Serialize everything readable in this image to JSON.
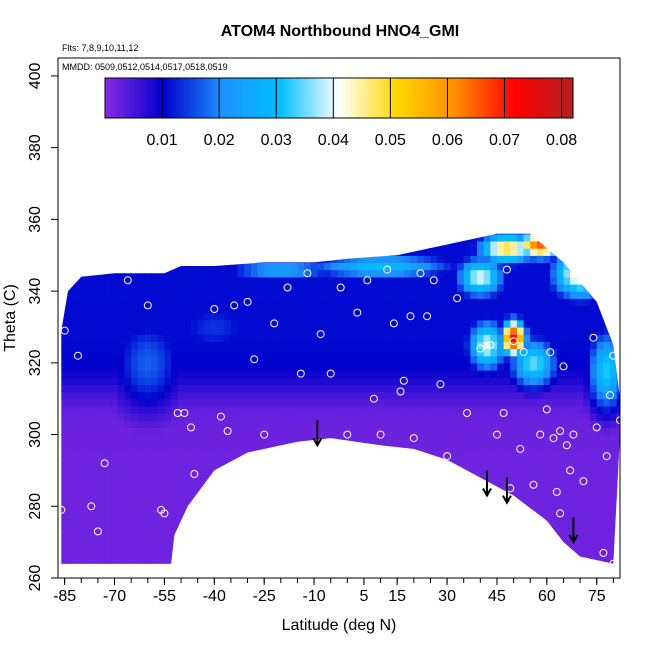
{
  "chart_data": {
    "type": "heatmap",
    "title": "ATOM4 Northbound HNO4_GMI",
    "flights_label": "Flts: 7,8,9,10,11,12",
    "dates_label": "MMDD: 0509,0512,0514,0517,0518,0519",
    "xlabel": "Latitude (deg N)",
    "ylabel": "Theta (C)",
    "xlim": [
      -87,
      82
    ],
    "ylim": [
      260,
      405
    ],
    "x_ticks": [
      "-85",
      "-70",
      "-55",
      "-40",
      "-25",
      "-10",
      "5",
      "15",
      "30",
      "45",
      "60",
      "75"
    ],
    "y_ticks": [
      "260",
      "280",
      "300",
      "320",
      "340",
      "360",
      "380",
      "400"
    ],
    "colorbar": {
      "min": 0.0,
      "max": 0.082,
      "ticks": [
        "0.01",
        "0.02",
        "0.03",
        "0.04",
        "0.05",
        "0.06",
        "0.07",
        "0.08"
      ],
      "colors": [
        "#8a2be2",
        "#0000cd",
        "#1e90ff",
        "#00bfff",
        "#ffffff",
        "#ffd700",
        "#ff8c00",
        "#ff0000",
        "#b22222"
      ]
    },
    "field": {
      "boundary_top": [
        [
          -86,
          329
        ],
        [
          -84,
          340
        ],
        [
          -80,
          344
        ],
        [
          -70,
          345
        ],
        [
          -55,
          345
        ],
        [
          -50,
          347
        ],
        [
          -40,
          347
        ],
        [
          -25,
          348
        ],
        [
          -10,
          348
        ],
        [
          0,
          349
        ],
        [
          15,
          350
        ],
        [
          30,
          353
        ],
        [
          45,
          356
        ],
        [
          55,
          356
        ],
        [
          65,
          348
        ],
        [
          75,
          337
        ],
        [
          80,
          325
        ],
        [
          82,
          310
        ]
      ],
      "boundary_bottom": [
        [
          82,
          300
        ],
        [
          80,
          264
        ],
        [
          70,
          266
        ],
        [
          65,
          270
        ],
        [
          60,
          276
        ],
        [
          50,
          283
        ],
        [
          40,
          288
        ],
        [
          30,
          293
        ],
        [
          20,
          296
        ],
        [
          10,
          297
        ],
        [
          -5,
          299
        ],
        [
          -15,
          298
        ],
        [
          -30,
          295
        ],
        [
          -40,
          290
        ],
        [
          -48,
          280
        ],
        [
          -52,
          272
        ],
        [
          -53,
          264
        ],
        [
          -86,
          264
        ]
      ],
      "blobs": [
        {
          "x": 50,
          "y": 327,
          "value": 0.075,
          "sx": 2.5,
          "sy": 3.5
        },
        {
          "x": 58,
          "y": 353,
          "value": 0.065,
          "sx": 5,
          "sy": 2.5
        },
        {
          "x": 48,
          "y": 352,
          "value": 0.05,
          "sx": 6,
          "sy": 3
        },
        {
          "x": 70,
          "y": 345,
          "value": 0.045,
          "sx": 6,
          "sy": 5
        },
        {
          "x": 40,
          "y": 344,
          "value": 0.04,
          "sx": 5,
          "sy": 4
        },
        {
          "x": 42,
          "y": 325,
          "value": 0.04,
          "sx": 4,
          "sy": 5
        },
        {
          "x": 56,
          "y": 320,
          "value": 0.035,
          "sx": 5,
          "sy": 5
        },
        {
          "x": 78,
          "y": 318,
          "value": 0.032,
          "sx": 4,
          "sy": 8
        },
        {
          "x": 10,
          "y": 347,
          "value": 0.03,
          "sx": 16,
          "sy": 2.5
        },
        {
          "x": -20,
          "y": 346,
          "value": 0.025,
          "sx": 12,
          "sy": 2
        },
        {
          "x": -60,
          "y": 320,
          "value": 0.017,
          "sx": 8,
          "sy": 10
        },
        {
          "x": -40,
          "y": 330,
          "value": 0.014,
          "sx": 10,
          "sy": 6
        }
      ],
      "upper_value": 0.011,
      "lower_value": 0.002,
      "transition_theta": 313
    },
    "observations": [
      [
        -86,
        279
      ],
      [
        -85,
        329
      ],
      [
        -81,
        322
      ],
      [
        -77,
        280
      ],
      [
        -75,
        273
      ],
      [
        -73,
        292
      ],
      [
        -66,
        343
      ],
      [
        -60,
        336
      ],
      [
        -56,
        279
      ],
      [
        -55,
        278
      ],
      [
        -51,
        306
      ],
      [
        -49,
        306
      ],
      [
        -47,
        302
      ],
      [
        -46,
        289
      ],
      [
        -44,
        276
      ],
      [
        -43,
        280
      ],
      [
        -40,
        335
      ],
      [
        -38,
        305
      ],
      [
        -36,
        301
      ],
      [
        -34,
        336
      ],
      [
        -30,
        337
      ],
      [
        -28,
        321
      ],
      [
        -25,
        300
      ],
      [
        -22,
        331
      ],
      [
        -18,
        341
      ],
      [
        -14,
        317
      ],
      [
        -12,
        345
      ],
      [
        -8,
        328
      ],
      [
        -5,
        317
      ],
      [
        -2,
        341
      ],
      [
        0,
        300
      ],
      [
        3,
        334
      ],
      [
        6,
        343
      ],
      [
        8,
        310
      ],
      [
        10,
        300
      ],
      [
        12,
        346
      ],
      [
        14,
        331
      ],
      [
        16,
        312
      ],
      [
        17,
        315
      ],
      [
        19,
        333
      ],
      [
        20,
        299
      ],
      [
        22,
        345
      ],
      [
        24,
        333
      ],
      [
        26,
        343
      ],
      [
        28,
        314
      ],
      [
        30,
        294
      ],
      [
        33,
        338
      ],
      [
        36,
        306
      ],
      [
        40,
        324
      ],
      [
        43,
        325
      ],
      [
        45,
        300
      ],
      [
        47,
        306
      ],
      [
        48,
        346
      ],
      [
        49,
        285
      ],
      [
        50,
        326
      ],
      [
        52,
        296
      ],
      [
        53,
        323
      ],
      [
        56,
        286
      ],
      [
        58,
        300
      ],
      [
        60,
        307
      ],
      [
        61,
        323
      ],
      [
        62,
        299
      ],
      [
        63,
        284
      ],
      [
        64,
        278
      ],
      [
        64,
        301
      ],
      [
        65,
        319
      ],
      [
        66,
        297
      ],
      [
        67,
        290
      ],
      [
        68,
        300
      ],
      [
        71,
        287
      ],
      [
        74,
        327
      ],
      [
        75,
        302
      ],
      [
        77,
        267
      ],
      [
        78,
        294
      ],
      [
        79,
        311
      ],
      [
        80,
        264
      ],
      [
        80,
        322
      ],
      [
        82,
        304
      ]
    ],
    "arrows": [
      {
        "x": -9,
        "y_top": 304,
        "y_bottom": 297
      },
      {
        "x": 42,
        "y_top": 290,
        "y_bottom": 283
      },
      {
        "x": 48,
        "y_top": 288,
        "y_bottom": 281
      },
      {
        "x": 68,
        "y_top": 277,
        "y_bottom": 270
      }
    ]
  }
}
